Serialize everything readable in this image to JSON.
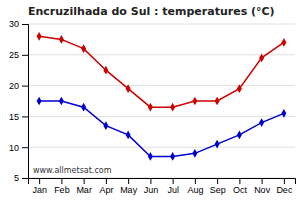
{
  "chart_data": {
    "type": "line",
    "title": "Encruzilhada do Sul : temperatures (°C)",
    "categories": [
      "Jan",
      "Feb",
      "Mar",
      "Apr",
      "May",
      "Jun",
      "Jul",
      "Aug",
      "Sep",
      "Oct",
      "Nov",
      "Dec"
    ],
    "series": [
      {
        "color": "#cc0000",
        "marker": "diamond",
        "values": [
          28.0,
          27.5,
          26.0,
          22.5,
          19.5,
          16.5,
          16.5,
          17.5,
          17.5,
          19.5,
          24.5,
          27.0
        ]
      },
      {
        "color": "#0000cc",
        "marker": "diamond",
        "values": [
          17.5,
          17.5,
          16.5,
          13.5,
          12.0,
          8.5,
          8.5,
          9.0,
          10.5,
          12.0,
          14.0,
          15.5
        ]
      }
    ],
    "ylim": [
      5,
      30
    ],
    "yticks": [
      5,
      10,
      15,
      20,
      25,
      30
    ],
    "grid": true,
    "annotations": [
      "www.allmetsat.com"
    ]
  }
}
